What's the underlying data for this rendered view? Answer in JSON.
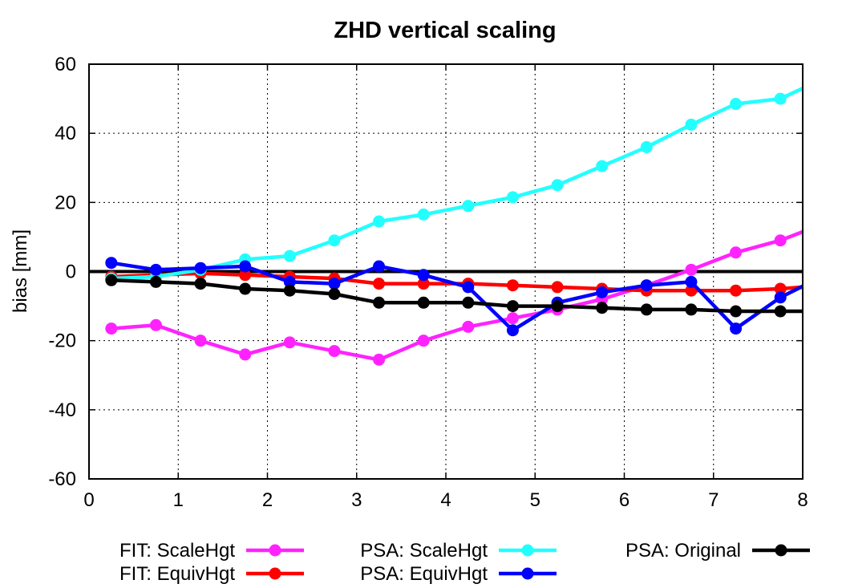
{
  "chart_data": {
    "type": "line",
    "title": "ZHD vertical scaling",
    "xlabel": "",
    "ylabel": "bias [mm]",
    "xlim": [
      0,
      8
    ],
    "ylim": [
      -60,
      60
    ],
    "xticks": [
      0,
      1,
      2,
      3,
      4,
      5,
      6,
      7,
      8
    ],
    "yticks": [
      -60,
      -40,
      -20,
      0,
      20,
      40,
      60
    ],
    "grid": true,
    "zero_line": true,
    "legend_position": "bottom",
    "x": [
      0.25,
      0.75,
      1.25,
      1.75,
      2.25,
      2.75,
      3.25,
      3.75,
      4.25,
      4.75,
      5.25,
      5.75,
      6.25,
      6.75,
      7.25,
      7.75,
      8.25
    ],
    "series": [
      {
        "name": "FIT: ScaleHgt",
        "color": "#ff22ff",
        "values": [
          -16.5,
          -15.5,
          -20,
          -24,
          -20.5,
          -23,
          -25.5,
          -20,
          -16,
          -13.5,
          -11,
          -8,
          -4,
          0.5,
          5.5,
          9,
          14
        ]
      },
      {
        "name": "FIT: EquivHgt",
        "color": "#ff0000",
        "values": [
          -1.5,
          -1,
          -0.5,
          -1,
          -1.5,
          -2,
          -3.5,
          -3.5,
          -3.5,
          -4,
          -4.5,
          -5,
          -5.5,
          -5.5,
          -5.5,
          -5,
          -4
        ]
      },
      {
        "name": "PSA: ScaleHgt",
        "color": "#22ffff",
        "values": [
          -2,
          -1.5,
          0.5,
          3.5,
          4.5,
          9,
          14.5,
          16.5,
          19,
          21.5,
          25,
          30.5,
          36,
          42.5,
          48.5,
          50,
          56
        ]
      },
      {
        "name": "PSA: EquivHgt",
        "color": "#0000ff",
        "values": [
          2.5,
          0.5,
          1,
          1.5,
          -3,
          -3.5,
          1.5,
          -1,
          -4.5,
          -17,
          -9,
          -6,
          -4,
          -3,
          -16.5,
          -7.5,
          -1
        ]
      },
      {
        "name": "PSA: Original",
        "color": "#000000",
        "values": [
          -2.5,
          -3,
          -3.5,
          -5,
          -5.5,
          -6.5,
          -9,
          -9,
          -9,
          -10,
          -10,
          -10.5,
          -11,
          -11,
          -11.5,
          -11.5,
          -11.5
        ]
      }
    ]
  }
}
